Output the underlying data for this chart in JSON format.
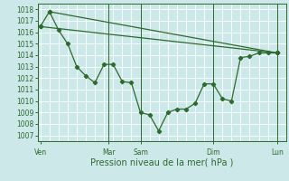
{
  "background_color": "#cce8e8",
  "plot_bg_color": "#cce8e8",
  "grid_color": "#ffffff",
  "line_color": "#2d6a2d",
  "xlabel": "Pression niveau de la mer( hPa )",
  "xtick_labels": [
    "Ven",
    "Mar",
    "Sam",
    "Dim",
    "Lun"
  ],
  "xtick_positions": [
    0,
    7.5,
    11,
    19,
    26
  ],
  "ylim": [
    1006.5,
    1018.5
  ],
  "yticks": [
    1007,
    1008,
    1009,
    1010,
    1011,
    1012,
    1013,
    1014,
    1015,
    1016,
    1017,
    1018
  ],
  "xlim": [
    -0.3,
    27.0
  ],
  "line1_x": [
    0,
    1,
    2,
    3,
    4,
    5,
    6,
    7,
    8,
    9,
    10,
    11,
    12,
    13,
    14,
    15,
    16,
    17,
    18,
    19,
    20,
    21,
    22,
    23,
    24,
    25,
    26
  ],
  "line1_y": [
    1016.5,
    1017.8,
    1016.2,
    1015.0,
    1013.0,
    1012.2,
    1011.6,
    1013.2,
    1013.2,
    1011.7,
    1011.6,
    1009.0,
    1008.8,
    1007.4,
    1009.0,
    1009.3,
    1009.3,
    1009.8,
    1011.5,
    1011.5,
    1010.2,
    1010.0,
    1013.8,
    1013.9,
    1014.2,
    1014.2,
    1014.2
  ],
  "line2_x": [
    1,
    26
  ],
  "line2_y": [
    1017.8,
    1014.2
  ],
  "line3_x": [
    0,
    26
  ],
  "line3_y": [
    1016.5,
    1014.2
  ],
  "vlines": [
    7.5,
    11,
    19,
    26
  ],
  "xlabel_fontsize": 7,
  "tick_fontsize": 5.5
}
